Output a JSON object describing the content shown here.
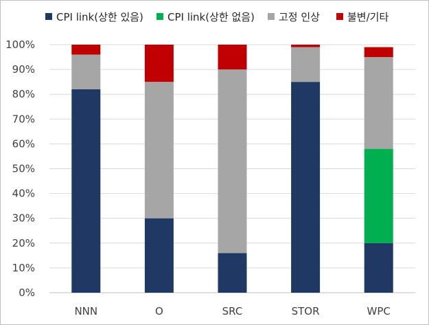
{
  "chart_data": {
    "type": "bar",
    "stacked": true,
    "percent": true,
    "categories": [
      "NNN",
      "O",
      "SRC",
      "STOR",
      "WPC"
    ],
    "series": [
      {
        "name": "CPI link(상한 있음)",
        "color": "#1f3864",
        "values": [
          82,
          30,
          16,
          85,
          20
        ]
      },
      {
        "name": "CPI link(상한 없음)",
        "color": "#00b050",
        "values": [
          0,
          0,
          0,
          0,
          38
        ]
      },
      {
        "name": "고정 인상",
        "color": "#a6a6a6",
        "values": [
          14,
          55,
          74,
          14,
          37
        ]
      },
      {
        "name": "불변/기타",
        "color": "#c00000",
        "values": [
          4,
          15,
          10,
          1,
          4
        ]
      }
    ],
    "yticks": [
      "0%",
      "10%",
      "20%",
      "30%",
      "40%",
      "50%",
      "60%",
      "70%",
      "80%",
      "90%",
      "100%"
    ],
    "ylim": [
      0,
      100
    ],
    "grid": true,
    "legend_position": "top"
  }
}
